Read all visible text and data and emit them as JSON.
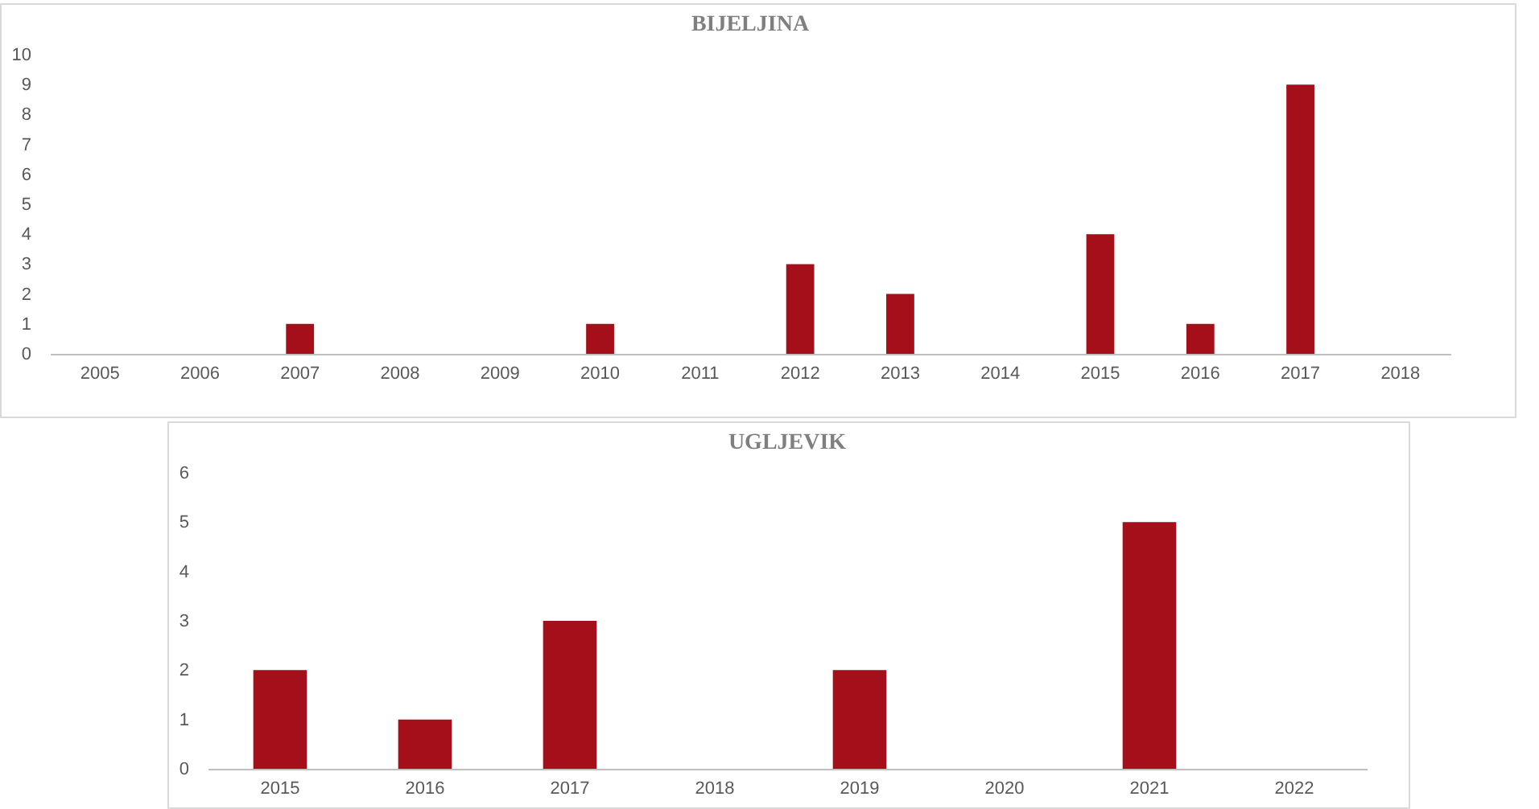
{
  "chart_data": [
    {
      "type": "bar",
      "title": "BIJELJINA",
      "categories": [
        "2005",
        "2006",
        "2007",
        "2008",
        "2009",
        "2010",
        "2011",
        "2012",
        "2013",
        "2014",
        "2015",
        "2016",
        "2017",
        "2018"
      ],
      "values": [
        0,
        0,
        1,
        0,
        0,
        1,
        0,
        3,
        2,
        0,
        4,
        1,
        9,
        0
      ],
      "color": "#a50f1a",
      "ylim": [
        0,
        10
      ],
      "yticks": [
        0,
        1,
        2,
        3,
        4,
        5,
        6,
        7,
        8,
        9,
        10
      ],
      "grid": false
    },
    {
      "type": "bar",
      "title": "UGLJEVIK",
      "categories": [
        "2015",
        "2016",
        "2017",
        "2018",
        "2019",
        "2020",
        "2021",
        "2022"
      ],
      "values": [
        2,
        1,
        3,
        0,
        2,
        0,
        5,
        0
      ],
      "color": "#a50f1a",
      "ylim": [
        0,
        6
      ],
      "yticks": [
        0,
        1,
        2,
        3,
        4,
        5,
        6
      ],
      "grid": false
    }
  ]
}
